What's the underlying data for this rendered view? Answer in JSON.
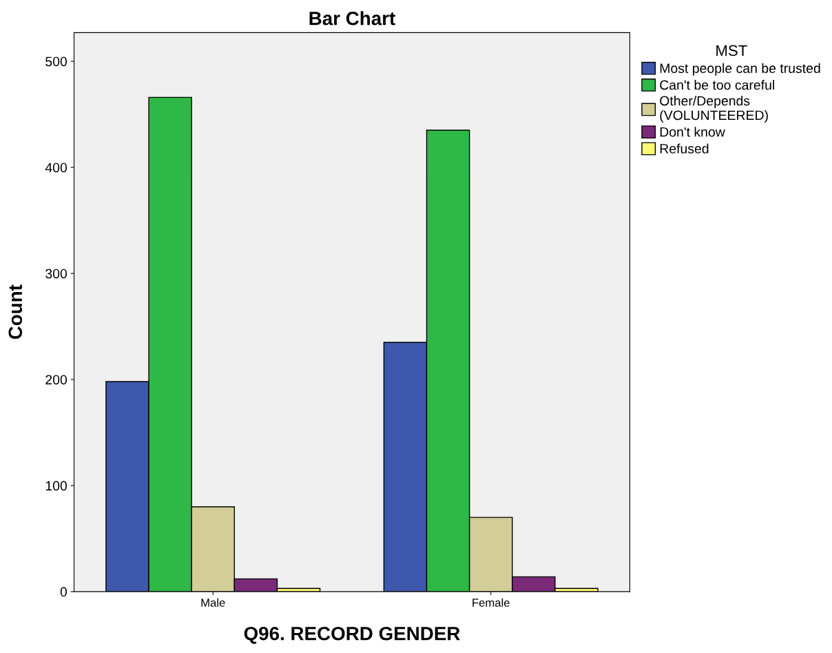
{
  "chart_data": {
    "type": "bar",
    "title": "Bar Chart",
    "xlabel": "Q96. RECORD GENDER",
    "ylabel": "Count",
    "legend_title": "MST",
    "categories": [
      "Male",
      "Female"
    ],
    "series": [
      {
        "name": "Most people can be trusted",
        "color": "#3e58ac",
        "values": [
          198,
          235
        ]
      },
      {
        "name": "Can't be too careful",
        "color": "#2eb848",
        "values": [
          466,
          435
        ]
      },
      {
        "name": "Other/Depends\n(VOLUNTEERED)",
        "color": "#d3ce97",
        "values": [
          80,
          70
        ]
      },
      {
        "name": "Don't know",
        "color": "#7b2a77",
        "values": [
          12,
          14
        ]
      },
      {
        "name": "Refused",
        "color": "#fbf873",
        "values": [
          3,
          3
        ]
      }
    ],
    "ylim": [
      0,
      527
    ],
    "yticks": [
      0,
      100,
      200,
      300,
      400,
      500
    ],
    "grid": false,
    "legend": "right"
  }
}
